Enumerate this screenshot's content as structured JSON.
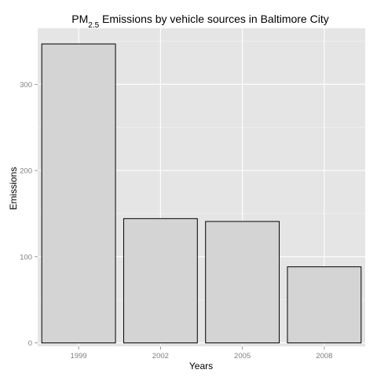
{
  "chart_data": {
    "type": "bar",
    "title": {
      "prefix": "PM",
      "subscript": "2.5",
      "suffix": " Emissions by vehicle sources in Baltimore City"
    },
    "xlabel": "Years",
    "ylabel": "Emissions",
    "categories": [
      "1999",
      "2002",
      "2005",
      "2008"
    ],
    "values": [
      346.8,
      144.2,
      140.9,
      88.3
    ],
    "ylim": [
      -4,
      365
    ],
    "yticks": [
      0,
      100,
      200,
      300
    ],
    "grid": true,
    "legend": "none",
    "colors": {
      "panel_background": "#e5e5e5",
      "grid_major": "#ffffff",
      "grid_minor": "#f2f2f2",
      "bar_fill": "#d4d4d4",
      "bar_outline": "#000000",
      "tick_label": "#7f7f7f"
    }
  }
}
